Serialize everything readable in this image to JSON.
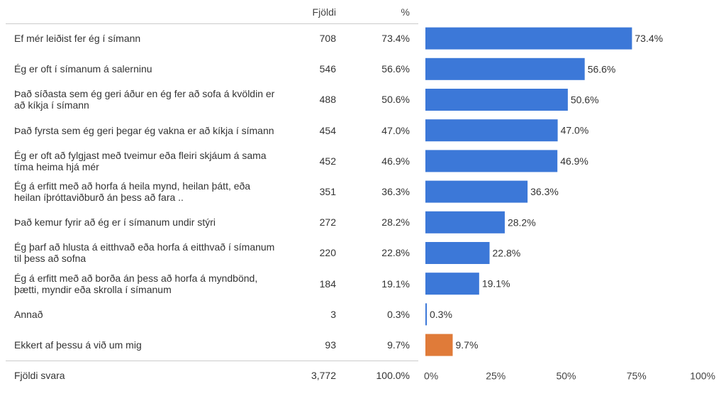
{
  "header": {
    "count_label": "Fjöldi",
    "pct_label": "%"
  },
  "rows": [
    {
      "label": "Ef mér leiðist fer ég í símann",
      "count": "708",
      "pct": "73.4%"
    },
    {
      "label": "Ég er oft í símanum á salerninu",
      "count": "546",
      "pct": "56.6%"
    },
    {
      "label": "Það síðasta sem ég geri áður en ég fer að sofa á kvöldin er að kíkja í símann",
      "count": "488",
      "pct": "50.6%"
    },
    {
      "label": "Það fyrsta sem ég geri þegar ég vakna er að kíkja í símann",
      "count": "454",
      "pct": "47.0%"
    },
    {
      "label": "Ég er oft að fylgjast með tveimur eða fleiri skjáum á sama tíma heima hjá mér",
      "count": "452",
      "pct": "46.9%"
    },
    {
      "label": "Ég á erfitt með að horfa á heila mynd, heilan þátt, eða heilan íþróttaviðburð án þess að fara ..",
      "count": "351",
      "pct": "36.3%"
    },
    {
      "label": "Það kemur fyrir að ég er í símanum undir stýri",
      "count": "272",
      "pct": "28.2%"
    },
    {
      "label": "Ég þarf að hlusta á eitthvað eða horfa á eitthvað í símanum til þess að sofna",
      "count": "220",
      "pct": "22.8%"
    },
    {
      "label": "Ég á erfitt með að borða án þess að horfa á myndbönd, þætti, myndir eða skrolla í símanum",
      "count": "184",
      "pct": "19.1%"
    },
    {
      "label": "Annað",
      "count": "3",
      "pct": "0.3%"
    },
    {
      "label": "Ekkert af þessu á við um mig",
      "count": "93",
      "pct": "9.7%"
    }
  ],
  "total": {
    "label": "Fjöldi svara",
    "count": "3,772",
    "pct": "100.0%"
  },
  "chart_data": {
    "type": "bar",
    "orientation": "horizontal",
    "categories": [
      "Ef mér leiðist fer ég í símann",
      "Ég er oft í símanum á salerninu",
      "Það síðasta sem ég geri áður en ég fer að sofa á kvöldin er að kíkja í símann",
      "Það fyrsta sem ég geri þegar ég vakna er að kíkja í símann",
      "Ég er oft að fylgjast með tveimur eða fleiri skjáum á sama tíma heima hjá mér",
      "Ég á erfitt með að horfa á heila mynd, heilan þátt, eða heilan íþróttaviðburð án þess að fara ..",
      "Það kemur fyrir að ég er í símanum undir stýri",
      "Ég þarf að hlusta á eitthvað eða horfa á eitthvað í símanum til þess að sofna",
      "Ég á erfitt með að borða án þess að horfa á myndbönd, þætti, myndir eða skrolla í símanum",
      "Annað",
      "Ekkert af þessu á við um mig"
    ],
    "values": [
      73.4,
      56.6,
      50.6,
      47.0,
      46.9,
      36.3,
      28.2,
      22.8,
      19.1,
      0.3,
      9.7
    ],
    "value_labels": [
      "73.4%",
      "56.6%",
      "50.6%",
      "47.0%",
      "46.9%",
      "36.3%",
      "28.2%",
      "22.8%",
      "19.1%",
      "0.3%",
      "9.7%"
    ],
    "bar_colors": [
      "#3c78d8",
      "#3c78d8",
      "#3c78d8",
      "#3c78d8",
      "#3c78d8",
      "#3c78d8",
      "#3c78d8",
      "#3c78d8",
      "#3c78d8",
      "#3c78d8",
      "#e07b39"
    ],
    "xlim": [
      0,
      100
    ],
    "x_ticks": [
      0,
      25,
      50,
      75,
      100
    ],
    "x_tick_labels": [
      "0%",
      "25%",
      "50%",
      "75%",
      "100%"
    ],
    "grid": false,
    "title": "",
    "xlabel": "",
    "ylabel": ""
  }
}
